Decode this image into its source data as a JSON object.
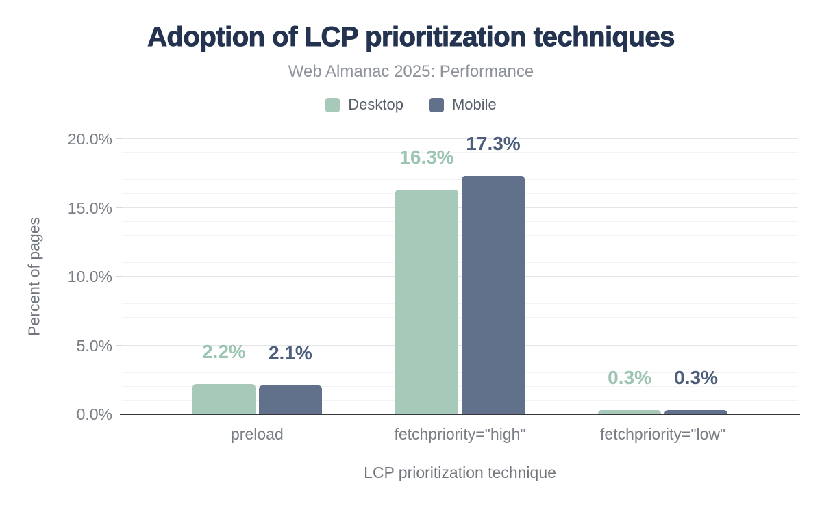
{
  "chart_data": {
    "type": "bar",
    "title": "Adoption of LCP prioritization techniques",
    "subtitle": "Web Almanac 2025: Performance",
    "categories": [
      "preload",
      "fetchpriority=\"high\"",
      "fetchpriority=\"low\""
    ],
    "series": [
      {
        "name": "Desktop",
        "color": "#a6c9ba",
        "label_color": "#9bc4b1",
        "values": [
          2.2,
          16.3,
          0.3
        ]
      },
      {
        "name": "Mobile",
        "color": "#61718c",
        "label_color": "#4d5d7c",
        "values": [
          2.1,
          17.3,
          0.3
        ]
      }
    ],
    "value_label_suffix": "%",
    "xlabel": "LCP prioritization technique",
    "ylabel": "Percent of pages",
    "ylim": [
      0,
      20
    ],
    "yticks": [
      {
        "value": 0,
        "label": "0.0%"
      },
      {
        "value": 5,
        "label": "5.0%"
      },
      {
        "value": 10,
        "label": "10.0%"
      },
      {
        "value": 15,
        "label": "15.0%"
      },
      {
        "value": 20,
        "label": "20.0%"
      }
    ],
    "minor_grid_step": 1,
    "major_grid_step": 5,
    "grid": true,
    "legend_position": "top",
    "axis_line_color": "#36363b"
  }
}
